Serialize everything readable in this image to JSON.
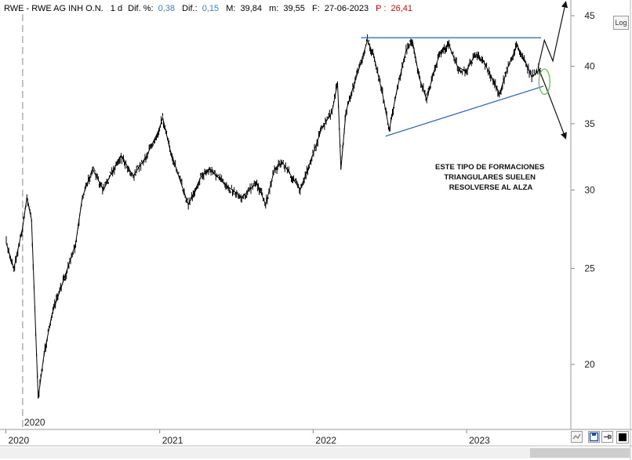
{
  "header": {
    "symbol": "RWE - RWE AG  INH O.N.",
    "period": "1 d",
    "dif_pct_label": "Dif. %:",
    "dif_pct_value": "0,38",
    "dif_label": "Dif.:",
    "dif_value": "0,15",
    "max_label": "M:",
    "max_value": "39,84",
    "min_label": "m:",
    "min_value": "39,55",
    "date_label": "F:",
    "date_value": "27-06-2023",
    "p_label": "P :",
    "p_value": "26,41"
  },
  "colors": {
    "positive": "#3a7fd6",
    "p_value": "#e00000",
    "price": "#000000",
    "trendline": "#1f5fbf",
    "ellipse": "#6abf4b"
  },
  "controls": {
    "log_button": "Log"
  },
  "icons": [
    "zoom-icon",
    "save-icon",
    "pin-icon",
    "color-square-icon"
  ],
  "chart_data": {
    "type": "line",
    "scale": "log",
    "ylim": [
      17.5,
      45.5
    ],
    "y_ticks": [
      20,
      25,
      30,
      35,
      40,
      45
    ],
    "y_tick_labels": [
      "20",
      "25",
      "30",
      "35",
      "40",
      "45"
    ],
    "x_ticks": [
      "2020",
      "2021",
      "2022",
      "2023"
    ],
    "period_marker": "2020",
    "series": [
      {
        "values": [
          [
            "2020-01-02",
            26.5
          ],
          [
            "2020-01-20",
            25.0
          ],
          [
            "2020-02-10",
            27.5
          ],
          [
            "2020-02-20",
            29.5
          ],
          [
            "2020-03-02",
            28.0
          ],
          [
            "2020-03-18",
            18.5
          ],
          [
            "2020-04-01",
            20.5
          ],
          [
            "2020-04-20",
            22.5
          ],
          [
            "2020-05-20",
            24.5
          ],
          [
            "2020-06-15",
            26.5
          ],
          [
            "2020-07-01",
            29.5
          ],
          [
            "2020-07-25",
            31.5
          ],
          [
            "2020-08-20",
            30.0
          ],
          [
            "2020-09-05",
            31.0
          ],
          [
            "2020-10-01",
            32.5
          ],
          [
            "2020-10-30",
            31.0
          ],
          [
            "2020-12-01",
            32.5
          ],
          [
            "2020-12-30",
            34.5
          ],
          [
            "2021-01-08",
            35.5
          ],
          [
            "2021-01-25",
            33.0
          ],
          [
            "2021-02-15",
            31.0
          ],
          [
            "2021-03-10",
            29.0
          ],
          [
            "2021-04-10",
            31.0
          ],
          [
            "2021-05-01",
            31.5
          ],
          [
            "2021-06-01",
            30.5
          ],
          [
            "2021-07-15",
            29.5
          ],
          [
            "2021-08-20",
            30.5
          ],
          [
            "2021-09-10",
            29.0
          ],
          [
            "2021-10-01",
            31.5
          ],
          [
            "2021-10-20",
            32.0
          ],
          [
            "2021-11-10",
            31.0
          ],
          [
            "2021-12-01",
            30.0
          ],
          [
            "2021-12-25",
            32.0
          ],
          [
            "2022-01-20",
            34.5
          ],
          [
            "2022-02-15",
            36.0
          ],
          [
            "2022-02-28",
            38.5
          ],
          [
            "2022-03-08",
            31.5
          ],
          [
            "2022-03-20",
            36.0
          ],
          [
            "2022-04-05",
            38.0
          ],
          [
            "2022-04-22",
            40.0
          ],
          [
            "2022-05-10",
            42.5
          ],
          [
            "2022-05-25",
            41.0
          ],
          [
            "2022-06-15",
            37.5
          ],
          [
            "2022-07-01",
            34.5
          ],
          [
            "2022-07-20",
            38.0
          ],
          [
            "2022-08-10",
            41.5
          ],
          [
            "2022-08-25",
            42.5
          ],
          [
            "2022-09-10",
            39.0
          ],
          [
            "2022-09-28",
            37.0
          ],
          [
            "2022-10-15",
            39.5
          ],
          [
            "2022-11-01",
            41.5
          ],
          [
            "2022-11-20",
            42.0
          ],
          [
            "2022-12-10",
            40.0
          ],
          [
            "2022-12-30",
            39.5
          ],
          [
            "2023-01-20",
            41.0
          ],
          [
            "2023-02-10",
            40.5
          ],
          [
            "2023-03-01",
            39.0
          ],
          [
            "2023-03-20",
            37.5
          ],
          [
            "2023-04-10",
            40.0
          ],
          [
            "2023-05-01",
            42.0
          ],
          [
            "2023-05-20",
            40.5
          ],
          [
            "2023-06-05",
            39.0
          ],
          [
            "2023-06-27",
            39.84
          ]
        ]
      }
    ],
    "annotations": {
      "resistance": {
        "from": [
          "2022-04-25",
          42.75
        ],
        "to": [
          "2023-06-27",
          42.75
        ]
      },
      "support": {
        "from": [
          "2022-06-22",
          34.0
        ],
        "to": [
          "2023-07-03",
          38.2
        ]
      },
      "arrow_up": {
        "points": [
          [
            "2023-06-20",
            39.9
          ],
          [
            "2023-07-05",
            42.5
          ],
          [
            "2023-07-25",
            40.5
          ],
          [
            "2023-08-25",
            46.5
          ]
        ]
      },
      "arrow_down": {
        "points": [
          [
            "2023-06-20",
            39.9
          ],
          [
            "2023-07-10",
            38.0
          ],
          [
            "2023-08-25",
            33.8
          ]
        ]
      },
      "ellipse": {
        "center": [
          "2023-07-05",
          38.6
        ],
        "rx_days": 13,
        "ry_ratio": 1.03
      },
      "note": [
        "ESTE TIPO DE FORMACIONES",
        "TRIANGULARES SUELEN",
        "RESOLVERSE AL ALZA"
      ]
    }
  }
}
